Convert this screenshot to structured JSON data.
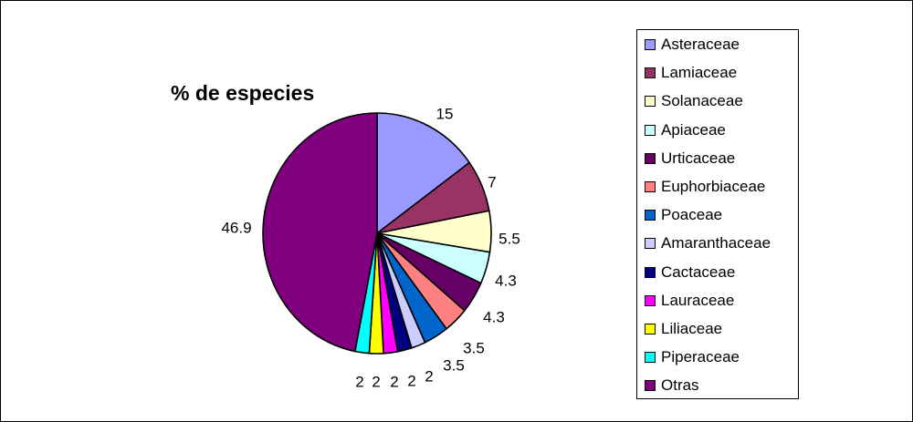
{
  "chart_data": {
    "type": "pie",
    "title": "% de especies",
    "categories": [
      "Asteraceae",
      "Lamiaceae",
      "Solanaceae",
      "Apiaceae",
      "Urticaceae",
      "Euphorbiaceae",
      "Poaceae",
      "Amaranthaceae",
      "Cactaceae",
      "Lauraceae",
      "Liliaceae",
      "Piperaceae",
      "Otras"
    ],
    "values": [
      15,
      7,
      5.5,
      4.3,
      4.3,
      3.5,
      3.5,
      2,
      2,
      2,
      2,
      2,
      46.9
    ],
    "labels": [
      "15",
      "7",
      "5.5",
      "4.3",
      "4.3",
      "3.5",
      "3.5",
      "2",
      "2",
      "2",
      "2",
      "2",
      "46.9"
    ],
    "colors": [
      "#9999ff",
      "#993366",
      "#ffffcc",
      "#ccffff",
      "#660066",
      "#ff8080",
      "#0066cc",
      "#ccccff",
      "#000080",
      "#ff00ff",
      "#ffff00",
      "#00ffff",
      "#800080"
    ],
    "legend_position": "right",
    "start_angle": "top, clockwise"
  }
}
